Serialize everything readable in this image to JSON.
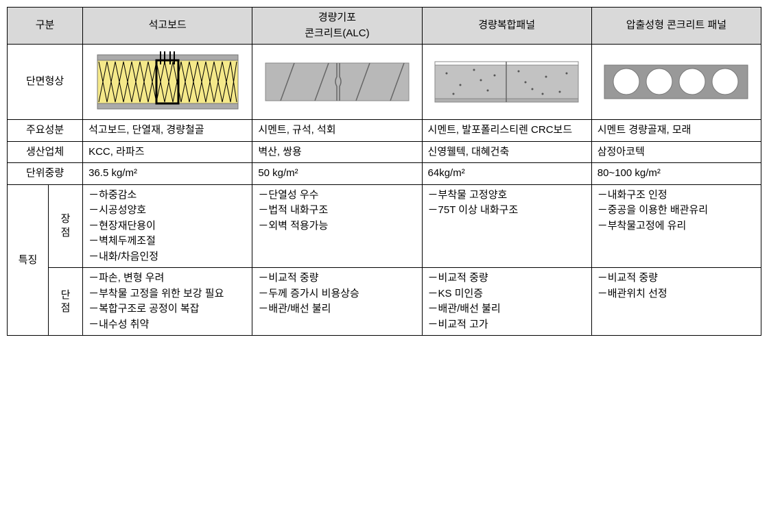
{
  "headers": {
    "category": "구분",
    "col1": "석고보드",
    "col2": "경량기포\n콘크리트(ALC)",
    "col3": "경량복합패널",
    "col4": "압출성형 콘크리트 패널"
  },
  "rows": {
    "shape": {
      "label": "단면형상"
    },
    "composition": {
      "label": "주요성분",
      "c1": "석고보드,    단열재, 경량철골",
      "c2": "시멘트, 규석, 석회",
      "c3": "시멘트,   발포폴리스티렌 CRC보드",
      "c4": "시멘트 경량골재, 모래"
    },
    "manufacturer": {
      "label": "생산업체",
      "c1": "KCC, 라파즈",
      "c2": "벽산, 쌍용",
      "c3": "신영웰텍, 대혜건축",
      "c4": "삼정아코텍"
    },
    "unitweight": {
      "label": "단위중량",
      "c1": "36.5 kg/m²",
      "c2": "50 kg/m²",
      "c3": "64kg/m²",
      "c4": "80~100 kg/m²"
    },
    "features": {
      "label": "특징",
      "pros": {
        "label": "장\n점",
        "c1": [
          "－하중감소",
          "－시공성양호",
          "－현장재단용이",
          "－벽체두께조절",
          "－내화/차음인정"
        ],
        "c2": [
          "－단열성 우수",
          "－법적 내화구조",
          "－외벽 적용가능"
        ],
        "c3": [
          "－부착물 고정양호",
          "－75T  이상  내화구조"
        ],
        "c4": [
          "－내화구조 인정",
          "－중공을 이용한 배관유리",
          "－부착물고정에 유리"
        ]
      },
      "cons": {
        "label": "단\n점",
        "c1": [
          "－파손, 변형 우려",
          "－부착물 고정을 위한 보강 필요",
          "－복합구조로 공정이 복잡",
          "－내수성 취약"
        ],
        "c2": [
          "－비교적 중량",
          "－두께  증가시  비용상승",
          "－배관/배선 불리"
        ],
        "c3": [
          "－비교적 중량",
          "－KS 미인증",
          "－배관/배선 불리",
          "－비교적 고가"
        ],
        "c4": [
          "－비교적 중량",
          "－배관위치 선정"
        ]
      }
    }
  },
  "shapes": {
    "gypsum": {
      "frame_color": "#aaaaaa",
      "insulation_color": "#f5e98a",
      "line_color": "#000000",
      "stud_color": "#000000"
    },
    "alc": {
      "fill_color": "#b8b8b8",
      "line_color": "#666666",
      "border_color": "#888888"
    },
    "composite": {
      "fill_color": "#c2c2c2",
      "dot_color": "#555555",
      "border_color": "#888888",
      "surface_top_color": "#ffffff",
      "surface_bot_color": "#b0b0b0"
    },
    "extruded": {
      "fill_color": "#999999",
      "hole_color": "#ffffff",
      "border_color": "#777777",
      "texture_color": "#888888"
    }
  }
}
